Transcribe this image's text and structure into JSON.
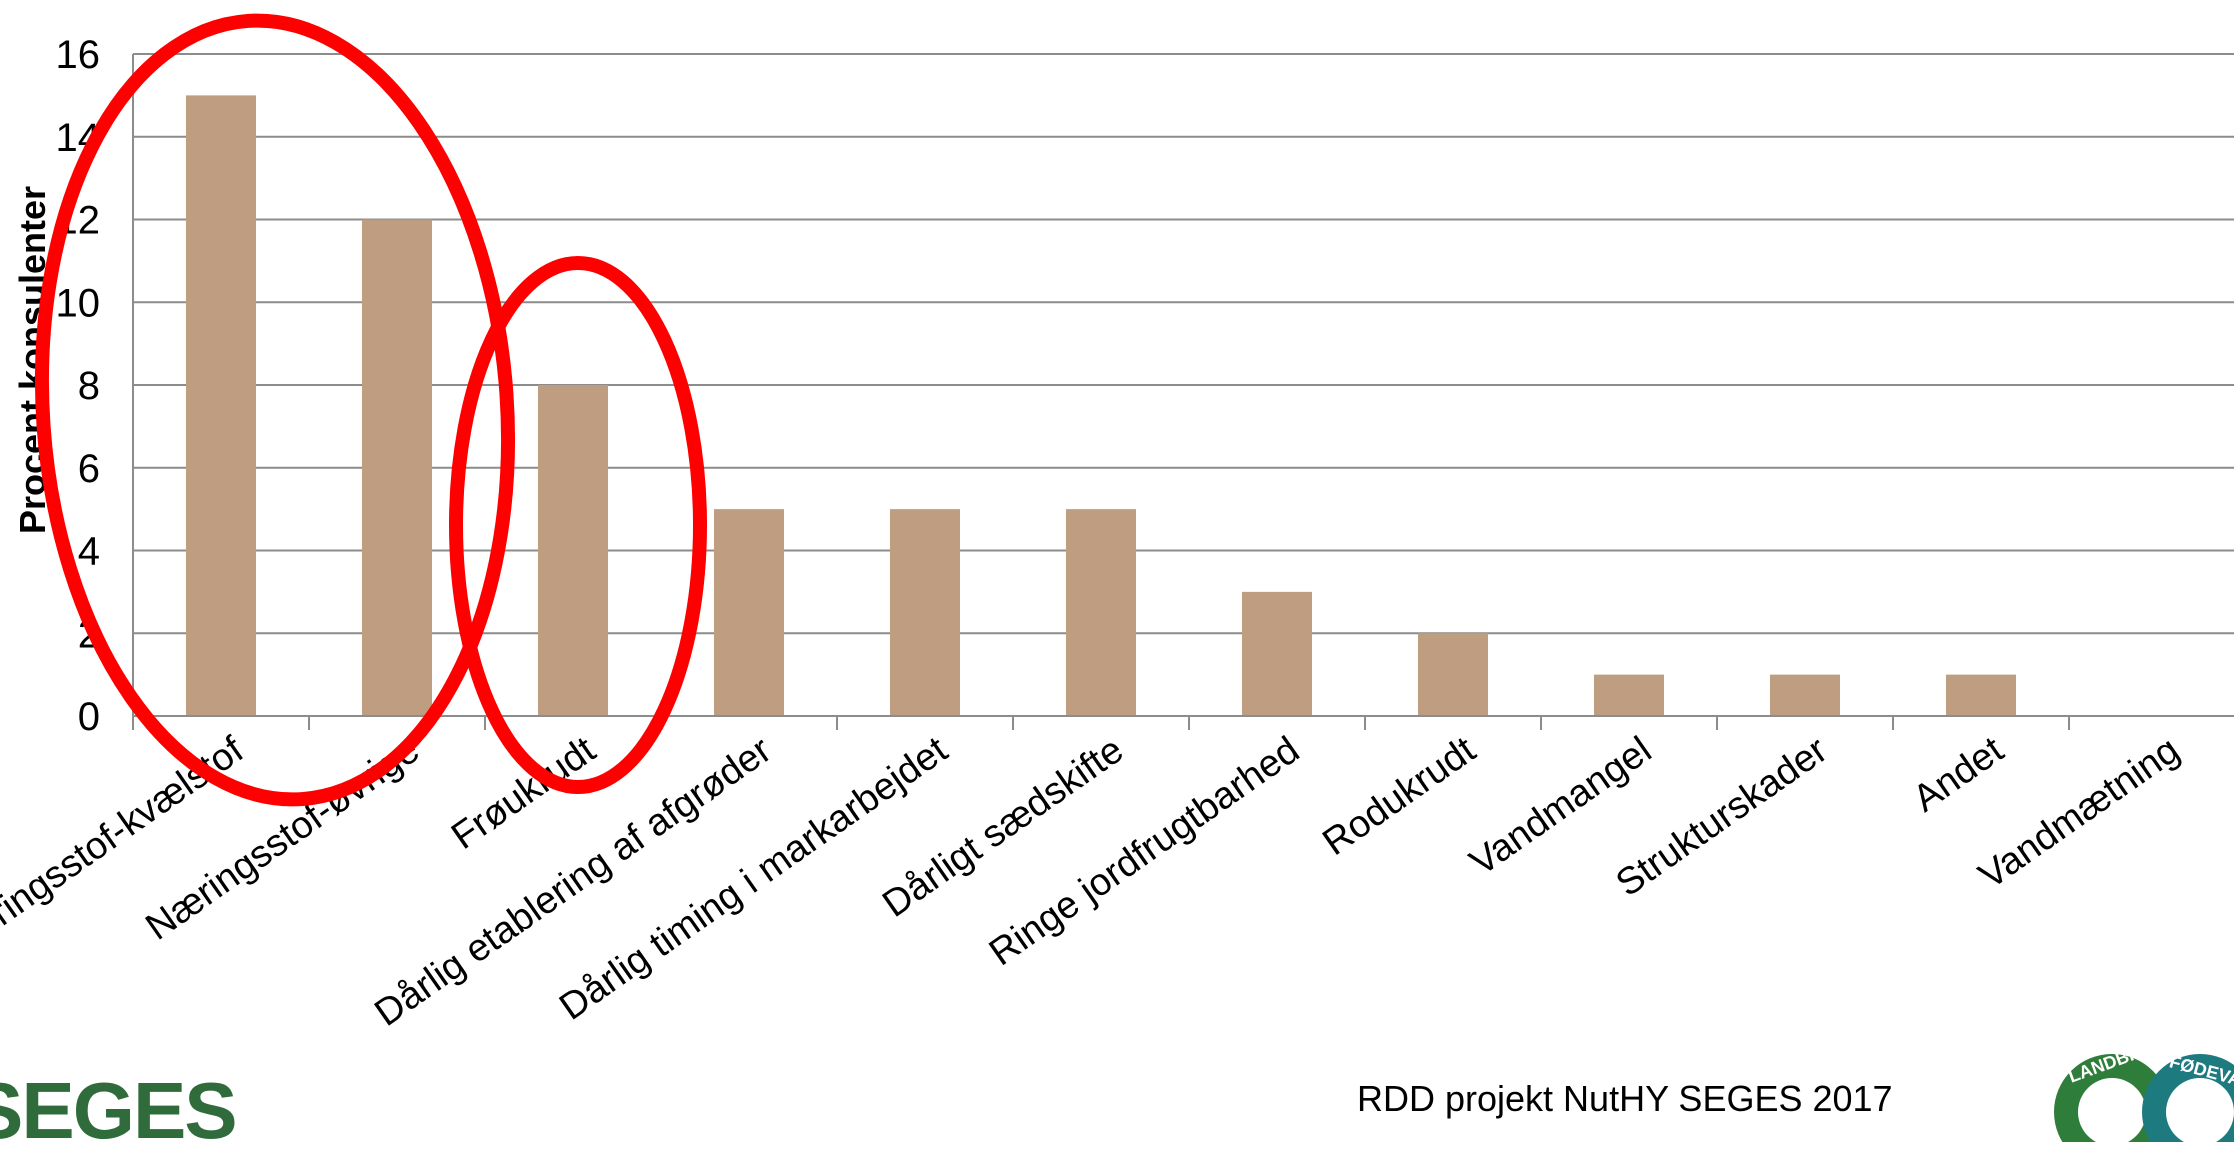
{
  "chart_data": {
    "type": "bar",
    "categories": [
      "Næringsstof-kvælstof",
      "Næringsstof-øvrige",
      "Frøukrudt",
      "Dårlig etablering af afgrøder",
      "Dårlig timing i markarbejdet",
      "Dårligt sædskifte",
      "Ringe jordfrugtbarhed",
      "Rodukrudt",
      "Vandmangel",
      "Strukturskader",
      "Andet",
      "Vandmætning"
    ],
    "values": [
      15,
      12,
      8,
      5,
      5,
      5,
      3,
      2,
      1,
      1,
      1,
      0
    ],
    "ylabel": "Procent konsulenter",
    "ylim": [
      0,
      16
    ],
    "yticks": [
      0,
      2,
      4,
      6,
      8,
      10,
      12,
      14,
      16
    ],
    "grid": true,
    "bar_color": "#bf9d80",
    "highlight_color": "#ff0000"
  },
  "footer": {
    "source": "RDD projekt NutHY SEGES 2017",
    "logo": "SEGES"
  },
  "seal_letters": {
    "left": "LANDBRUG",
    "right": "FØDEVARER"
  }
}
